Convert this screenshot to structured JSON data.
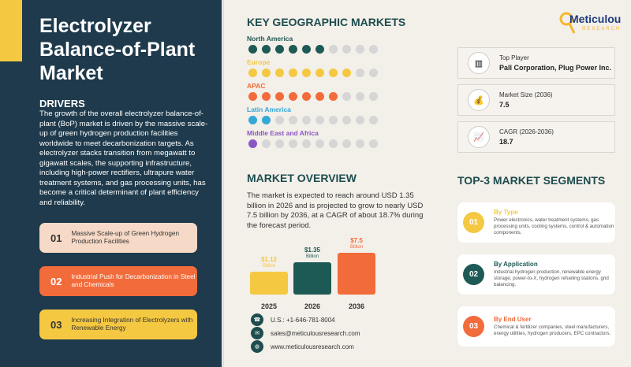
{
  "title": "Electrolyzer Balance-of-Plant Market",
  "drivers": {
    "heading": "DRIVERS",
    "text": "The growth of the overall electrolyzer balance-of-plant (BoP) market is driven by the massive scale-up of green hydrogen production facilities worldwide to meet decarbonization targets. As electrolyzer stacks transition from megawatt to gigawatt scales, the supporting infrastructure, including high-power rectifiers, ultrapure water treatment systems, and gas processing units, has become a critical determinant of plant efficiency and reliability.",
    "items": [
      {
        "num": "01",
        "text": "Massive Scale-up of Green Hydrogen Production Facilities",
        "color": "#f6d9c6"
      },
      {
        "num": "02",
        "text": "Industrial Push for Decarbonization in Steel and Chemicals",
        "color": "#f26b3a"
      },
      {
        "num": "03",
        "text": "Increasing Integration of Electrolyzers with Renewable Energy",
        "color": "#f5c842"
      }
    ]
  },
  "geo": {
    "heading": "KEY GEOGRAPHIC MARKETS",
    "regions": [
      {
        "name": "North America",
        "filled": 6,
        "color": "#1e5a55"
      },
      {
        "name": "Europe",
        "filled": 8,
        "color": "#f5c842"
      },
      {
        "name": "APAC",
        "filled": 7,
        "color": "#f26b3a"
      },
      {
        "name": "Latin America",
        "filled": 2,
        "color": "#35a8d8"
      },
      {
        "name": "Middle East and Africa",
        "filled": 1,
        "color": "#8a55c4"
      }
    ],
    "total": 10
  },
  "logo": {
    "name": "Meticulous",
    "sub": "RESEARCH"
  },
  "kpis": [
    {
      "label": "Top Player",
      "value": "Pall Corporation, Plug Power Inc.",
      "icon": "bar-chart-icon"
    },
    {
      "label": "Market Size (2036)",
      "value": "7.5",
      "icon": "money-bag-icon"
    },
    {
      "label": "CAGR (2026-2036)",
      "value": "18.7",
      "icon": "growth-chart-icon"
    }
  ],
  "overview": {
    "heading": "MARKET OVERVIEW",
    "text": "The market is expected to reach around USD 1.35 billion in 2026 and is projected to grow to nearly USD 7.5 billion by 2036, at a CAGR of about 18.7% during the forecast period."
  },
  "chart_data": {
    "type": "bar",
    "categories": [
      "2025",
      "2026",
      "2036"
    ],
    "values": [
      1.12,
      1.35,
      7.5
    ],
    "labels": [
      "$1.12",
      "$1.35",
      "$7.5"
    ],
    "unit": "Billion",
    "colors": [
      "#f5c842",
      "#1e5a55",
      "#f26b3a"
    ]
  },
  "contacts": [
    {
      "icon": "phone-icon",
      "text": "U.S.: +1-646-781-8004"
    },
    {
      "icon": "email-icon",
      "text": "sales@meticulousresearch.com"
    },
    {
      "icon": "globe-icon",
      "text": "www.meticulousresearch.com"
    }
  ],
  "segments": {
    "heading": "TOP-3 MARKET SEGMENTS",
    "items": [
      {
        "num": "01",
        "title": "By Type",
        "desc": "Power electronics, water treatment systems, gas processing units, cooling systems, control & automation components.",
        "color": "#f5c842"
      },
      {
        "num": "02",
        "title": "By Application",
        "desc": "Industrial hydrogen production, renewable energy storage, power-to-X, hydrogen refueling stations, grid balancing.",
        "color": "#1e5a55"
      },
      {
        "num": "03",
        "title": "By End User",
        "desc": "Chemical & fertilizer companies, steel manufacturers, energy utilities, hydrogen producers, EPC contractors.",
        "color": "#f26b3a"
      }
    ]
  }
}
